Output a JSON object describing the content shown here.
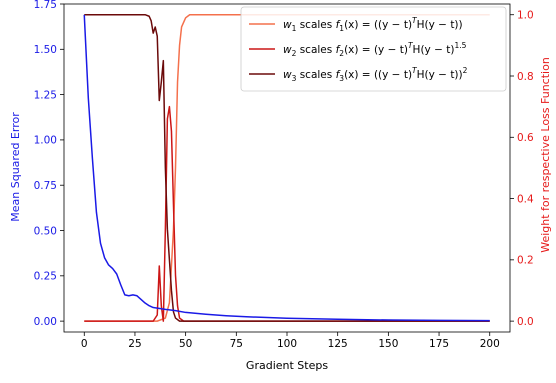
{
  "chart_data": {
    "type": "line",
    "xlabel": "Gradient Steps",
    "ylabel_left": "Mean Squared Error",
    "ylabel_right": "Weight for respective Loss Function",
    "xlim": [
      -10,
      210
    ],
    "ylim_left": [
      -0.06,
      1.75
    ],
    "ylim_right": [
      -0.0355,
      1.035
    ],
    "x_ticks": [
      0,
      25,
      50,
      75,
      100,
      125,
      150,
      175,
      200
    ],
    "x_tick_labels": [
      "0",
      "25",
      "50",
      "75",
      "100",
      "125",
      "150",
      "175",
      "200"
    ],
    "y_left_ticks": [
      0.0,
      0.25,
      0.5,
      0.75,
      1.0,
      1.25,
      1.5,
      1.75
    ],
    "y_left_tick_labels": [
      "0.00",
      "0.25",
      "0.50",
      "0.75",
      "1.00",
      "1.25",
      "1.50",
      "1.75"
    ],
    "y_right_ticks": [
      0.0,
      0.2,
      0.4,
      0.6,
      0.8,
      1.0
    ],
    "y_right_tick_labels": [
      "0.0",
      "0.2",
      "0.4",
      "0.6",
      "0.8",
      "1.0"
    ],
    "legend_position": "top-right",
    "colors": {
      "mse": "#1a1ae6",
      "w1": "#f4704c",
      "w2": "#cc1616",
      "w3": "#6b0a0a",
      "left_axis_label": "#1a1ae6",
      "right_axis_label": "#e61a1a",
      "right_tick_label": "#e61a1a"
    },
    "series": [
      {
        "name": "Mean Squared Error",
        "axis": "left",
        "points": [
          [
            0,
            1.69
          ],
          [
            2,
            1.23
          ],
          [
            4,
            0.9
          ],
          [
            6,
            0.6
          ],
          [
            8,
            0.43
          ],
          [
            10,
            0.35
          ],
          [
            12,
            0.31
          ],
          [
            14,
            0.29
          ],
          [
            16,
            0.26
          ],
          [
            18,
            0.2
          ],
          [
            20,
            0.145
          ],
          [
            22,
            0.14
          ],
          [
            24,
            0.145
          ],
          [
            26,
            0.14
          ],
          [
            28,
            0.12
          ],
          [
            30,
            0.1
          ],
          [
            32,
            0.085
          ],
          [
            34,
            0.075
          ],
          [
            36,
            0.072
          ],
          [
            40,
            0.065
          ],
          [
            45,
            0.058
          ],
          [
            50,
            0.048
          ],
          [
            60,
            0.038
          ],
          [
            70,
            0.03
          ],
          [
            80,
            0.024
          ],
          [
            100,
            0.016
          ],
          [
            125,
            0.01
          ],
          [
            150,
            0.006
          ],
          [
            175,
            0.004
          ],
          [
            200,
            0.003
          ]
        ]
      },
      {
        "name": "w1 scales f1(x)",
        "axis": "right",
        "points": [
          [
            0,
            0
          ],
          [
            36,
            0
          ],
          [
            40,
            0.01
          ],
          [
            42,
            0.06
          ],
          [
            44,
            0.3
          ],
          [
            45,
            0.5
          ],
          [
            46,
            0.78
          ],
          [
            47,
            0.9
          ],
          [
            48,
            0.96
          ],
          [
            50,
            0.99
          ],
          [
            52,
            1.0
          ],
          [
            200,
            1.0
          ]
        ]
      },
      {
        "name": "w2 scales f2(x)",
        "axis": "right",
        "points": [
          [
            0,
            0
          ],
          [
            34,
            0
          ],
          [
            36,
            0.02
          ],
          [
            37,
            0.18
          ],
          [
            38,
            0.05
          ],
          [
            39,
            0.0
          ],
          [
            40,
            0.3
          ],
          [
            41,
            0.66
          ],
          [
            42,
            0.7
          ],
          [
            43,
            0.62
          ],
          [
            44,
            0.38
          ],
          [
            45,
            0.15
          ],
          [
            46,
            0.05
          ],
          [
            47,
            0.01
          ],
          [
            49,
            0
          ],
          [
            200,
            0
          ]
        ]
      },
      {
        "name": "w3 scales f3(x)",
        "axis": "right",
        "points": [
          [
            0,
            1.0
          ],
          [
            30,
            1.0
          ],
          [
            32,
            0.995
          ],
          [
            33,
            0.98
          ],
          [
            34,
            0.94
          ],
          [
            35,
            0.96
          ],
          [
            36,
            0.93
          ],
          [
            37,
            0.72
          ],
          [
            38,
            0.78
          ],
          [
            39,
            0.85
          ],
          [
            40,
            0.5
          ],
          [
            41,
            0.3
          ],
          [
            42,
            0.2
          ],
          [
            43,
            0.1
          ],
          [
            44,
            0.03
          ],
          [
            45,
            0.01
          ],
          [
            47,
            0
          ],
          [
            200,
            0
          ]
        ]
      }
    ],
    "legend": [
      {
        "key": "w1",
        "pre": "w",
        "pre_sub": "1",
        "mid": "  scales  ",
        "f": "f",
        "f_sub": "1",
        "body": "(x) = ((y − t)",
        "sup": "T",
        "body2": "H(y − t))",
        "sup2": ""
      },
      {
        "key": "w2",
        "pre": "w",
        "pre_sub": "2",
        "mid": "  scales  ",
        "f": "f",
        "f_sub": "2",
        "body": "(x) = (y − t)",
        "sup": "T",
        "body2": "H(y − t)",
        "sup2": "1.5"
      },
      {
        "key": "w3",
        "pre": "w",
        "pre_sub": "3",
        "mid": "  scales  ",
        "f": "f",
        "f_sub": "3",
        "body": "(x) = ((y − t)",
        "sup": "T",
        "body2": "H(y − t))",
        "sup2": "2"
      }
    ]
  }
}
